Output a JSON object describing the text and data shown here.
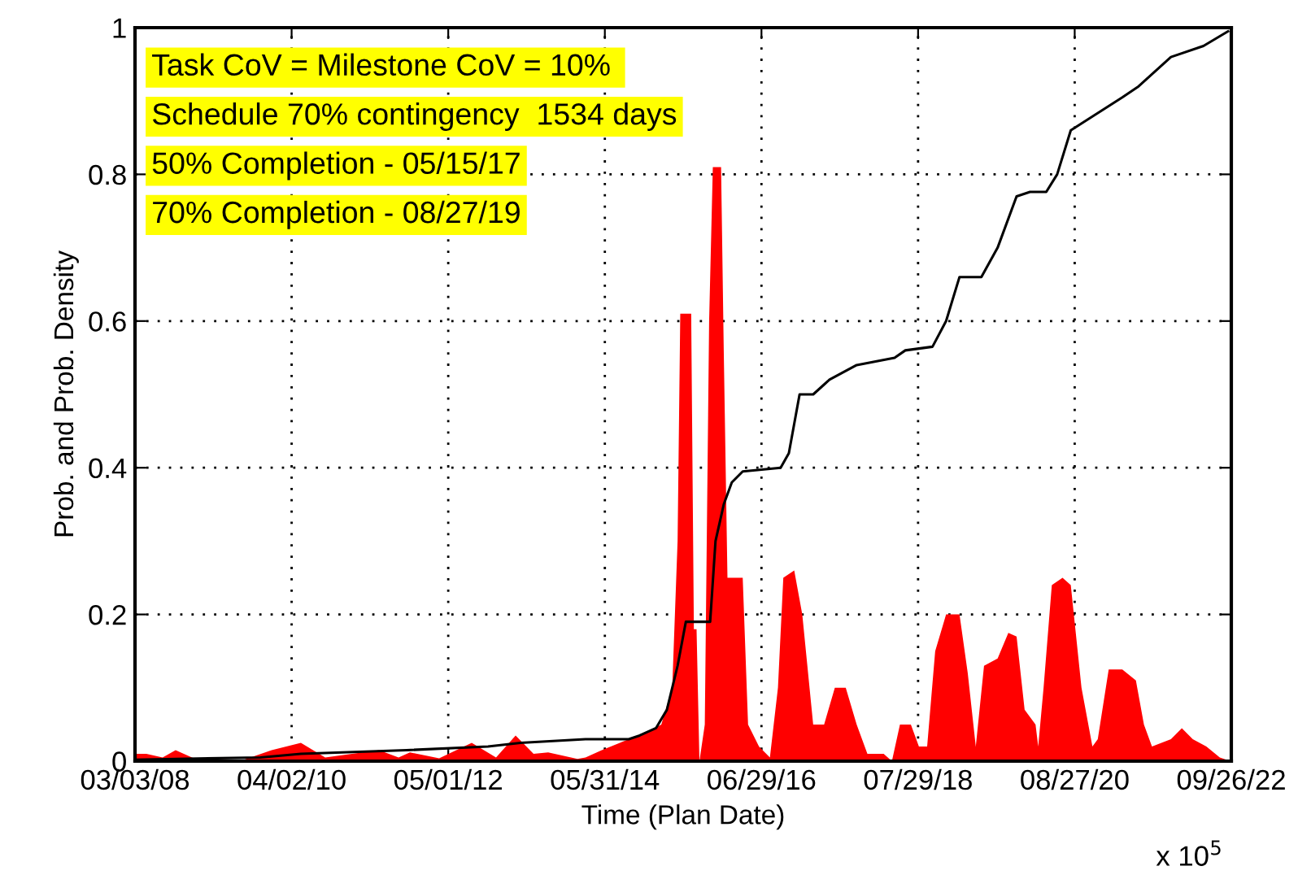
{
  "chart_data": {
    "type": "area",
    "xlabel": "Time (Plan Date)",
    "ylabel": "Prob. and Prob. Density",
    "annotations": [
      "Task CoV = Milestone CoV = 10% ",
      "Schedule 70% contingency  1534 days",
      "50% Completion - 05/15/17",
      "70% Completion - 08/27/19",
      "x 10$^{5}$"
    ],
    "xlim": [
      "2008-03-03",
      "2022-09-26"
    ],
    "ylim": [
      0,
      1
    ],
    "xticks": [
      {
        "value": "2008-03-03",
        "label": "03/03/08"
      },
      {
        "value": "2010-04-02",
        "label": "04/02/10"
      },
      {
        "value": "2012-05-01",
        "label": "05/01/12"
      },
      {
        "value": "2014-05-31",
        "label": "05/31/14"
      },
      {
        "value": "2016-06-29",
        "label": "06/29/16"
      },
      {
        "value": "2018-07-29",
        "label": "07/29/18"
      },
      {
        "value": "2020-08-27",
        "label": "08/27/20"
      },
      {
        "value": "2022-09-26",
        "label": "09/26/22"
      }
    ],
    "yticks": [
      0,
      0.2,
      0.4,
      0.6,
      0.8,
      1
    ],
    "grid": true,
    "line_style": "solid",
    "series": [
      {
        "type": "area",
        "color": "#ff0000",
        "x": [
          "2008-03-03",
          "2008-04-27",
          "2008-07-15",
          "2008-09-16",
          "2008-12-20",
          "2009-08-14",
          "2009-12-26",
          "2010-05-17",
          "2010-09-12",
          "2011-05-31",
          "2011-09-03",
          "2011-10-28",
          "2012-03-18",
          "2012-08-23",
          "2012-12-19",
          "2013-03-24",
          "2013-06-19",
          "2013-08-29",
          "2014-01-18",
          "2014-02-26",
          "2014-05-16",
          "2014-09-24",
          "2014-11-16",
          "2015-03-01",
          "2015-04-23",
          "2015-05-19",
          "2015-06-01",
          "2015-07-24",
          "2015-08-06",
          "2015-08-19",
          "2015-09-02",
          "2015-09-28",
          "2015-10-19",
          "2015-11-06",
          "2015-12-16",
          "2015-12-29",
          "2016-01-16",
          "2016-03-30",
          "2016-04-25",
          "2016-06-17",
          "2016-08-09",
          "2016-09-17",
          "2016-10-13",
          "2016-12-05",
          "2017-01-13",
          "2017-03-07",
          "2017-04-29",
          "2017-06-20",
          "2017-08-12",
          "2017-10-04",
          "2017-11-25",
          "2018-02-12",
          "2018-03-24",
          "2018-05-02",
          "2018-06-24",
          "2018-08-02",
          "2018-09-11",
          "2018-10-20",
          "2018-12-12",
          "2019-02-15",
          "2019-03-27",
          "2019-05-05",
          "2019-06-14",
          "2019-08-19",
          "2019-10-10",
          "2019-11-19",
          "2019-12-28",
          "2020-02-19",
          "2020-03-03",
          "2020-03-29",
          "2020-05-08",
          "2020-06-29",
          "2020-08-08",
          "2020-09-29",
          "2020-11-21",
          "2020-12-17",
          "2021-02-08",
          "2021-04-15",
          "2021-06-20",
          "2021-07-29",
          "2021-09-06",
          "2021-12-07",
          "2022-01-29",
          "2022-03-23",
          "2022-05-28",
          "2022-08-01",
          "2022-09-23"
        ],
        "values": [
          0.01,
          0.01,
          0.005,
          0.015,
          0.003,
          0.002,
          0.015,
          0.025,
          0.005,
          0.015,
          0.005,
          0.012,
          0.004,
          0.025,
          0.005,
          0.035,
          0.01,
          0.012,
          0.003,
          0.005,
          0.015,
          0.03,
          0.035,
          0.05,
          0.1,
          0.3,
          0.61,
          0.61,
          0.18,
          0.18,
          0,
          0.05,
          0.6,
          0.81,
          0.81,
          0.56,
          0.25,
          0.25,
          0.05,
          0.02,
          0.005,
          0.1,
          0.25,
          0.26,
          0.2,
          0.05,
          0.05,
          0.1,
          0.1,
          0.05,
          0.01,
          0.01,
          0,
          0.05,
          0.05,
          0.02,
          0.02,
          0.15,
          0.2,
          0.2,
          0.12,
          0.02,
          0.13,
          0.14,
          0.175,
          0.17,
          0.07,
          0.05,
          0.02,
          0.1,
          0.24,
          0.25,
          0.24,
          0.1,
          0.02,
          0.03,
          0.125,
          0.125,
          0.11,
          0.05,
          0.02,
          0.03,
          0.045,
          0.03,
          0.02,
          0.005,
          0
        ]
      },
      {
        "type": "line",
        "color": "#000000",
        "x": [
          "2008-03-03",
          "2009-11-01",
          "2010-05-17",
          "2011-10-12",
          "2012-11-10",
          "2013-04-17",
          "2014-02-26",
          "2014-09-24",
          "2014-11-16",
          "2015-02-03",
          "2015-03-28",
          "2015-05-19",
          "2015-06-28",
          "2015-10-24",
          "2015-11-19",
          "2015-12-29",
          "2016-02-06",
          "2016-03-30",
          "2016-09-30",
          "2016-11-09",
          "2016-12-31",
          "2017-03-07",
          "2017-05-25",
          "2017-10-04",
          "2018-04-06",
          "2018-05-28",
          "2018-10-07",
          "2018-12-12",
          "2019-02-15",
          "2019-06-01",
          "2019-08-19",
          "2019-11-19",
          "2020-01-23",
          "2020-04-11",
          "2020-06-03",
          "2020-08-08",
          "2021-04-15",
          "2021-07-03",
          "2021-12-07",
          "2022-05-14",
          "2022-09-10"
        ],
        "values": [
          0.002,
          0.005,
          0.01,
          0.015,
          0.02,
          0.025,
          0.03,
          0.03,
          0.035,
          0.045,
          0.07,
          0.13,
          0.19,
          0.19,
          0.3,
          0.35,
          0.38,
          0.395,
          0.4,
          0.42,
          0.5,
          0.5,
          0.52,
          0.54,
          0.55,
          0.56,
          0.565,
          0.6,
          0.66,
          0.66,
          0.7,
          0.77,
          0.776,
          0.776,
          0.8,
          0.86,
          0.905,
          0.92,
          0.96,
          0.975,
          0.995
        ]
      }
    ]
  }
}
